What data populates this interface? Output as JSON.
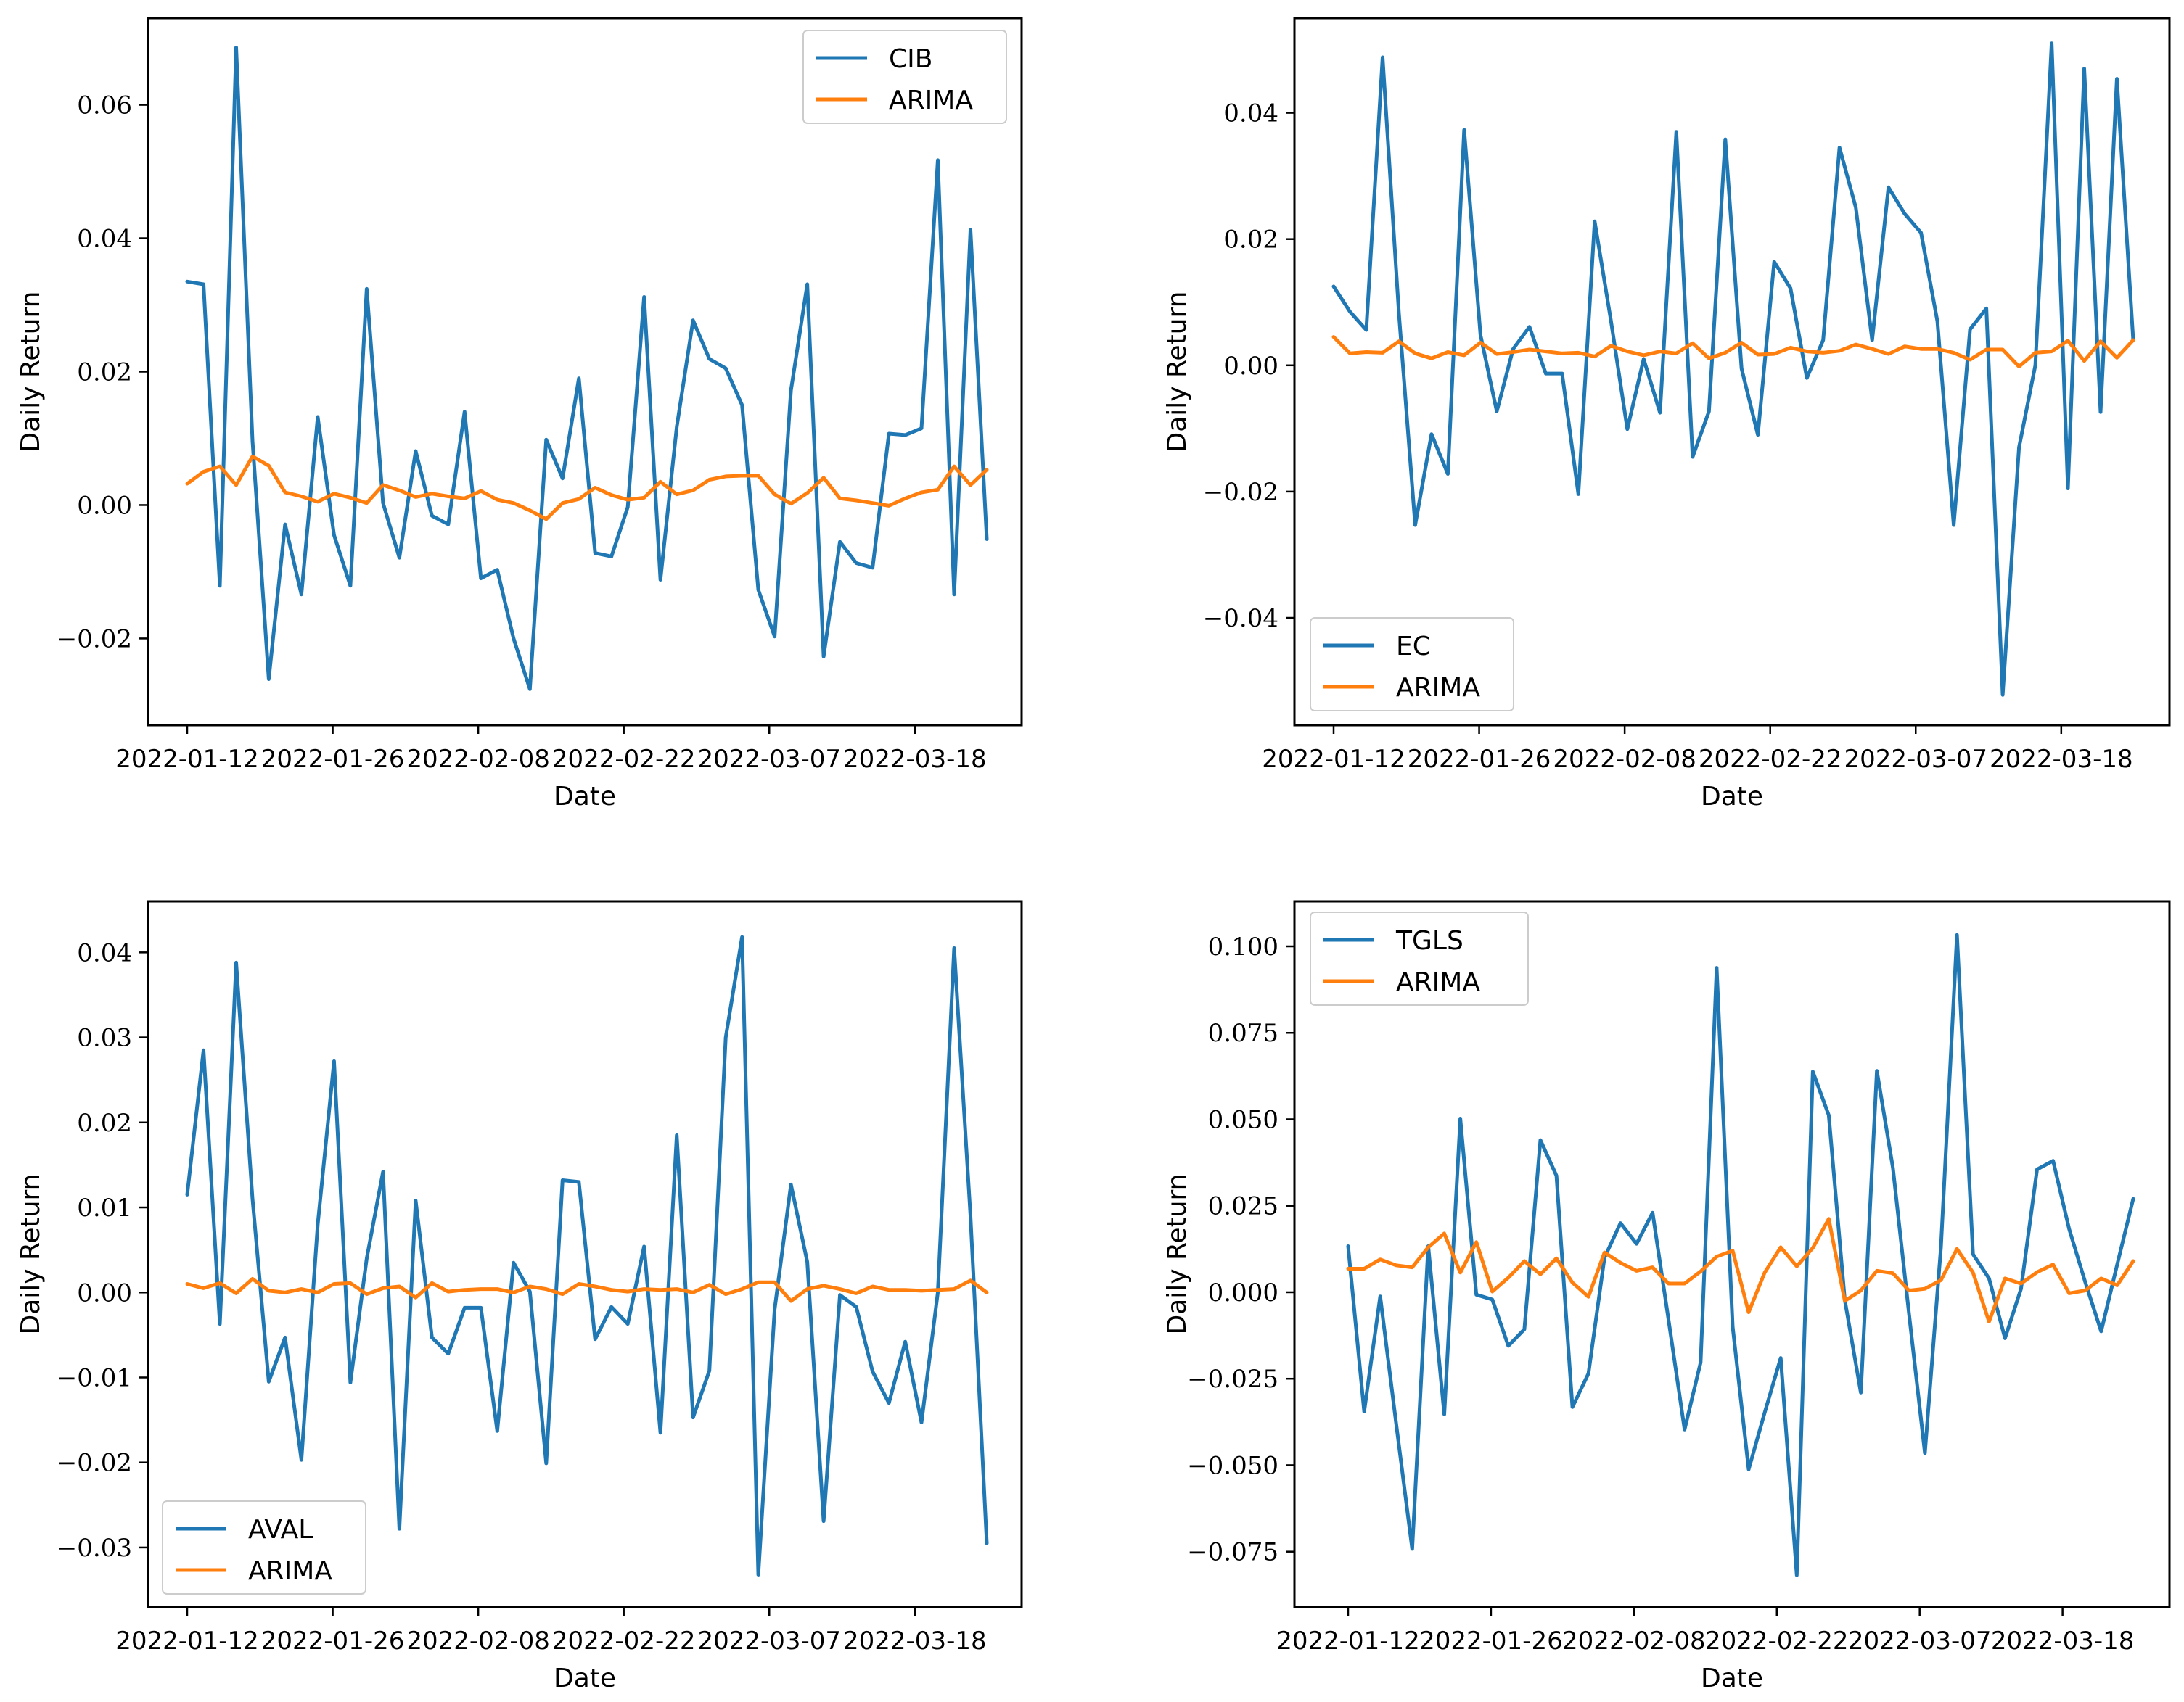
{
  "colors": {
    "stock": "#1f77b4",
    "arima": "#ff7f0e"
  },
  "chart_data": [
    {
      "type": "line",
      "panel": "top-left",
      "title": "",
      "xlabel": "Date",
      "ylabel": "Daily Return",
      "xticks": [
        "2022-01-12",
        "2022-01-26",
        "2022-02-08",
        "2022-02-22",
        "2022-03-07",
        "2022-03-18"
      ],
      "ylim": [
        -0.033,
        0.073
      ],
      "yticks": [
        -0.02,
        0.0,
        0.02,
        0.04,
        0.06
      ],
      "ytick_labels": [
        "−0.02",
        "0.00",
        "0.02",
        "0.04",
        "0.06"
      ],
      "legend_position": "top-right",
      "series": [
        {
          "name": "CIB",
          "values": [
            0.0335,
            0.0331,
            -0.0121,
            0.0686,
            0.0096,
            -0.0261,
            -0.0029,
            -0.0134,
            0.0132,
            -0.0045,
            -0.0121,
            0.0324,
            0.0003,
            -0.0079,
            0.0081,
            -0.0016,
            -0.0029,
            0.014,
            -0.011,
            -0.0097,
            -0.02,
            -0.0276,
            0.0098,
            0.004,
            0.019,
            -0.0072,
            -0.0077,
            -0.0003,
            0.0312,
            -0.0112,
            0.0117,
            0.0277,
            0.0219,
            0.0205,
            0.015,
            -0.0127,
            -0.0197,
            0.0172,
            0.0331,
            -0.0227,
            -0.0055,
            -0.0087,
            -0.0094,
            0.0107,
            0.0105,
            0.0115,
            0.0517,
            -0.0134,
            0.0413,
            -0.0051
          ]
        },
        {
          "name": "ARIMA",
          "values": [
            0.0032,
            0.005,
            0.0058,
            0.003,
            0.0073,
            0.0059,
            0.0019,
            0.0013,
            0.0005,
            0.0017,
            0.0011,
            0.0003,
            0.003,
            0.0022,
            0.0012,
            0.0017,
            0.0013,
            0.001,
            0.0021,
            0.0008,
            0.0003,
            -0.0008,
            -0.0021,
            0.0003,
            0.0009,
            0.0026,
            0.0015,
            0.0008,
            0.0011,
            0.0035,
            0.0016,
            0.0022,
            0.0038,
            0.0043,
            0.0044,
            0.0044,
            0.0016,
            0.0002,
            0.0018,
            0.0041,
            0.001,
            0.0007,
            0.0003,
            -0.0001,
            0.001,
            0.0019,
            0.0023,
            0.0058,
            0.003,
            0.0053
          ]
        }
      ]
    },
    {
      "type": "line",
      "panel": "top-right",
      "title": "",
      "xlabel": "Date",
      "ylabel": "Daily Return",
      "xticks": [
        "2022-01-12",
        "2022-01-26",
        "2022-02-08",
        "2022-02-22",
        "2022-03-07",
        "2022-03-18"
      ],
      "ylim": [
        -0.057,
        0.055
      ],
      "yticks": [
        -0.04,
        -0.02,
        0.0,
        0.02,
        0.04
      ],
      "ytick_labels": [
        "−0.04",
        "−0.02",
        "0.00",
        "0.02",
        "0.04"
      ],
      "legend_position": "bottom-left",
      "series": [
        {
          "name": "EC",
          "values": [
            0.0125,
            0.0085,
            0.0056,
            0.0488,
            0.0082,
            -0.0253,
            -0.0109,
            -0.0172,
            0.0373,
            0.0048,
            -0.0073,
            0.0026,
            0.0061,
            -0.0013,
            -0.0013,
            -0.0204,
            0.0228,
            0.007,
            -0.0101,
            0.001,
            -0.0075,
            0.037,
            -0.0145,
            -0.0073,
            0.0358,
            -0.0005,
            -0.011,
            0.0164,
            0.0122,
            -0.002,
            0.004,
            0.0345,
            0.025,
            0.004,
            0.0282,
            0.024,
            0.021,
            0.007,
            -0.0253,
            0.0057,
            0.009,
            -0.0522,
            -0.013,
            0.0,
            0.051,
            -0.0195,
            0.047,
            -0.0074,
            0.0454,
            0.004
          ]
        },
        {
          "name": "ARIMA",
          "values": [
            0.0045,
            0.0019,
            0.0021,
            0.002,
            0.0038,
            0.0019,
            0.0011,
            0.0021,
            0.0016,
            0.0036,
            0.0018,
            0.0021,
            0.0025,
            0.0022,
            0.0019,
            0.002,
            0.0014,
            0.0031,
            0.0022,
            0.0016,
            0.0022,
            0.0019,
            0.0035,
            0.0011,
            0.002,
            0.0036,
            0.0017,
            0.0018,
            0.0028,
            0.0022,
            0.002,
            0.0023,
            0.0033,
            0.0026,
            0.0018,
            0.003,
            0.0026,
            0.0026,
            0.002,
            0.0009,
            0.0025,
            0.0025,
            -0.0002,
            0.002,
            0.0022,
            0.0039,
            0.0007,
            0.0038,
            0.0012,
            0.004
          ]
        }
      ]
    },
    {
      "type": "line",
      "panel": "bottom-left",
      "title": "",
      "xlabel": "Date",
      "ylabel": "Daily Return",
      "xticks": [
        "2022-01-12",
        "2022-01-26",
        "2022-02-08",
        "2022-02-22",
        "2022-03-07",
        "2022-03-18"
      ],
      "ylim": [
        -0.037,
        0.046
      ],
      "yticks": [
        -0.03,
        -0.02,
        -0.01,
        0.0,
        0.01,
        0.02,
        0.03,
        0.04
      ],
      "ytick_labels": [
        "−0.03",
        "−0.02",
        "−0.01",
        "0.00",
        "0.01",
        "0.02",
        "0.03",
        "0.04"
      ],
      "legend_position": "bottom-left",
      "series": [
        {
          "name": "AVAL",
          "values": [
            0.0115,
            0.0285,
            -0.0037,
            0.0388,
            0.011,
            -0.0105,
            -0.0053,
            -0.0197,
            0.008,
            0.0272,
            -0.0106,
            0.004,
            0.0142,
            -0.0278,
            0.0108,
            -0.0053,
            -0.0072,
            -0.0018,
            -0.0018,
            -0.0163,
            0.0035,
            0.0001,
            -0.0201,
            0.0132,
            0.013,
            -0.0055,
            -0.0017,
            -0.0037,
            0.0054,
            -0.0165,
            0.0185,
            -0.0147,
            -0.0092,
            0.03,
            0.0418,
            -0.0332,
            -0.002,
            0.0127,
            0.0036,
            -0.0269,
            -0.0003,
            -0.0017,
            -0.0093,
            -0.013,
            -0.0058,
            -0.0153,
            0.0,
            0.0405,
            0.009,
            -0.0295
          ]
        },
        {
          "name": "ARIMA",
          "values": [
            0.001,
            0.0005,
            0.0011,
            -0.0001,
            0.0016,
            0.0002,
            0.0,
            0.0004,
            0.0,
            0.001,
            0.0011,
            -0.0002,
            0.0005,
            0.0007,
            -0.0006,
            0.0011,
            0.0001,
            0.0003,
            0.0004,
            0.0004,
            0.0,
            0.0007,
            0.0004,
            -0.0002,
            0.001,
            0.0007,
            0.0003,
            0.0001,
            0.0004,
            0.0003,
            0.0004,
            0.0,
            0.0009,
            -0.0002,
            0.0004,
            0.0012,
            0.0012,
            -0.001,
            0.0004,
            0.0008,
            0.0004,
            -0.0001,
            0.0007,
            0.0003,
            0.0003,
            0.0002,
            0.0003,
            0.0004,
            0.0014,
            0.0
          ]
        }
      ]
    },
    {
      "type": "line",
      "panel": "bottom-right",
      "title": "",
      "xlabel": "Date",
      "ylabel": "Daily Return",
      "xticks": [
        "2022-01-12",
        "2022-01-26",
        "2022-02-08",
        "2022-02-22",
        "2022-03-07",
        "2022-03-18"
      ],
      "ylim": [
        -0.091,
        0.113
      ],
      "yticks": [
        -0.075,
        -0.05,
        -0.025,
        0.0,
        0.025,
        0.05,
        0.075,
        0.1
      ],
      "ytick_labels": [
        "−0.075",
        "−0.050",
        "−0.025",
        "0.000",
        "0.025",
        "0.050",
        "0.075",
        "0.100"
      ],
      "legend_position": "top-left",
      "series": [
        {
          "name": "TGLS",
          "values": [
            0.0133,
            -0.0345,
            -0.0012,
            -0.038,
            -0.0742,
            0.0133,
            -0.0353,
            0.0502,
            -0.0007,
            -0.0021,
            -0.0155,
            -0.0107,
            0.044,
            0.0337,
            -0.0332,
            -0.0235,
            0.01,
            0.02,
            0.014,
            0.023,
            -0.008,
            -0.0397,
            -0.0203,
            0.0938,
            -0.01,
            -0.0512,
            -0.0348,
            -0.019,
            -0.0818,
            0.0638,
            0.0512,
            -0.0022,
            -0.029,
            0.064,
            0.036,
            -0.006,
            -0.0465,
            0.013,
            0.1033,
            0.011,
            0.004,
            -0.0133,
            0.001,
            0.0355,
            0.038,
            0.0183,
            0.003,
            -0.0113,
            0.008,
            0.027
          ]
        },
        {
          "name": "ARIMA",
          "values": [
            0.0068,
            0.0068,
            0.0095,
            0.0078,
            0.0072,
            0.013,
            0.017,
            0.0057,
            0.0145,
            0.0002,
            0.0042,
            0.009,
            0.0052,
            0.0098,
            0.0028,
            -0.0013,
            0.0115,
            0.0085,
            0.0062,
            0.0072,
            0.0025,
            0.0025,
            0.006,
            0.0103,
            0.012,
            -0.0058,
            0.0057,
            0.013,
            0.0075,
            0.0128,
            0.0212,
            -0.0025,
            0.0005,
            0.0062,
            0.0055,
            0.0005,
            0.001,
            0.0035,
            0.0125,
            0.0057,
            -0.0085,
            0.004,
            0.0025,
            0.0058,
            0.008,
            -0.0003,
            0.0005,
            0.004,
            0.002,
            0.009
          ]
        }
      ]
    }
  ]
}
